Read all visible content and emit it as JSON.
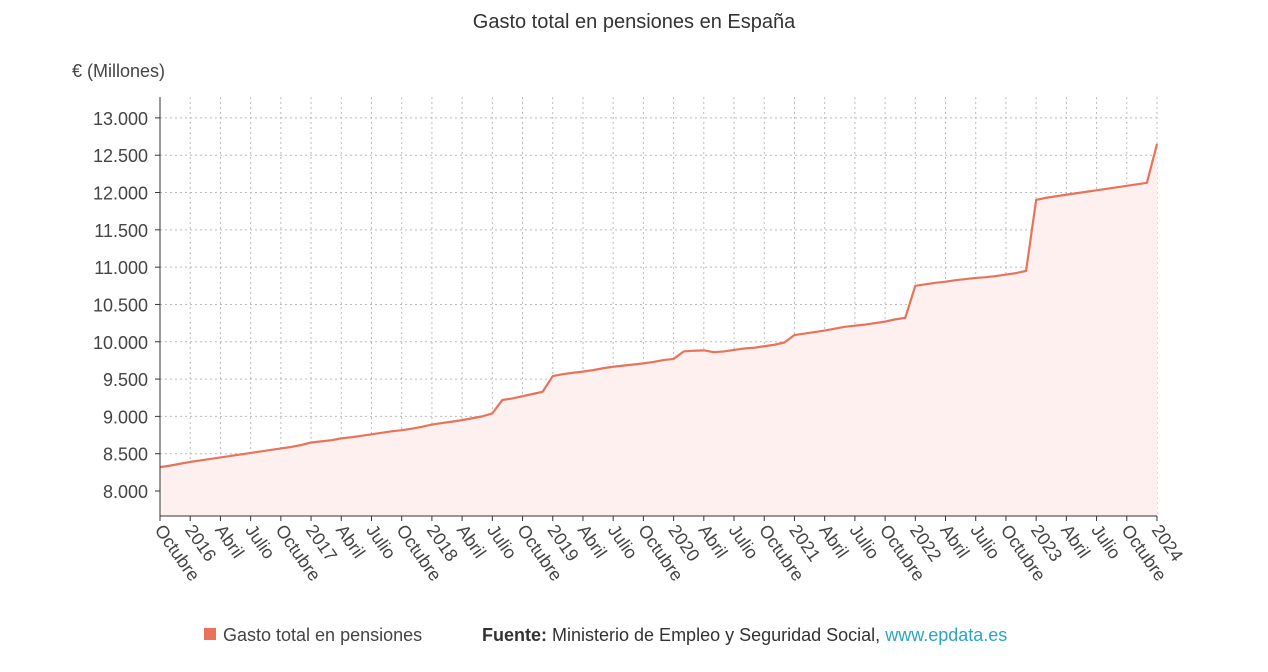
{
  "chart_data": {
    "type": "line",
    "title": "Gasto total en pensiones en España",
    "y_axis_label": "€ (Millones)",
    "categories": [
      "Octubre",
      null,
      null,
      "2016",
      null,
      null,
      "Abril",
      null,
      null,
      "Julio",
      null,
      null,
      "Octubre",
      null,
      null,
      "2017",
      null,
      null,
      "Abril",
      null,
      null,
      "Julio",
      null,
      null,
      "Octubre",
      null,
      null,
      "2018",
      null,
      null,
      "Abril",
      null,
      null,
      "Julio",
      null,
      null,
      "Octubre",
      null,
      null,
      "2019",
      null,
      null,
      "Abril",
      null,
      null,
      "Julio",
      null,
      null,
      "Octubre",
      null,
      null,
      "2020",
      null,
      null,
      "Abril",
      null,
      null,
      "Julio",
      null,
      null,
      "Octubre",
      null,
      null,
      "2021",
      null,
      null,
      "Abril",
      null,
      null,
      "Julio",
      null,
      null,
      "Octubre",
      null,
      null,
      "2022",
      null,
      null,
      "Abril",
      null,
      null,
      "Julio",
      null,
      null,
      "Octubre",
      null,
      null,
      "2023",
      null,
      null,
      "Abril",
      null,
      null,
      "Julio",
      null,
      null,
      "Octubre",
      null,
      null,
      "2024"
    ],
    "series": [
      {
        "name": "Gasto total en pensiones",
        "color": "#e8735a",
        "area_color": "#fdf0ee",
        "values": [
          8320,
          8340,
          8365,
          8390,
          8410,
          8430,
          8450,
          8470,
          8490,
          8510,
          8530,
          8550,
          8570,
          8590,
          8615,
          8650,
          8665,
          8680,
          8705,
          8720,
          8740,
          8760,
          8780,
          8800,
          8815,
          8835,
          8860,
          8890,
          8910,
          8930,
          8950,
          8975,
          9000,
          9040,
          9220,
          9240,
          9270,
          9300,
          9330,
          9540,
          9565,
          9585,
          9600,
          9620,
          9645,
          9665,
          9680,
          9695,
          9710,
          9730,
          9755,
          9770,
          9870,
          9880,
          9885,
          9860,
          9870,
          9890,
          9910,
          9920,
          9940,
          9960,
          9990,
          10090,
          10110,
          10130,
          10150,
          10175,
          10200,
          10215,
          10230,
          10250,
          10270,
          10300,
          10320,
          10750,
          10770,
          10790,
          10805,
          10825,
          10840,
          10855,
          10865,
          10880,
          10900,
          10920,
          10950,
          11900,
          11930,
          11950,
          11970,
          11990,
          12010,
          12030,
          12050,
          12070,
          12090,
          12110,
          12130,
          12650
        ]
      }
    ],
    "ylim": [
      7665,
      13280
    ],
    "yticks": [
      {
        "value": 8000,
        "label": "8.000"
      },
      {
        "value": 8500,
        "label": "8.500"
      },
      {
        "value": 9000,
        "label": "9.000"
      },
      {
        "value": 9500,
        "label": "9.500"
      },
      {
        "value": 10000,
        "label": "10.000"
      },
      {
        "value": 10500,
        "label": "10.500"
      },
      {
        "value": 11000,
        "label": "11.000"
      },
      {
        "value": 11500,
        "label": "11.500"
      },
      {
        "value": 12000,
        "label": "12.000"
      },
      {
        "value": 12500,
        "label": "12.500"
      },
      {
        "value": 13000,
        "label": "13.000"
      }
    ],
    "grid": true,
    "source": {
      "label": "Fuente:",
      "text": "Ministerio de Empleo y Seguridad Social,",
      "link": "www.epdata.es"
    }
  }
}
